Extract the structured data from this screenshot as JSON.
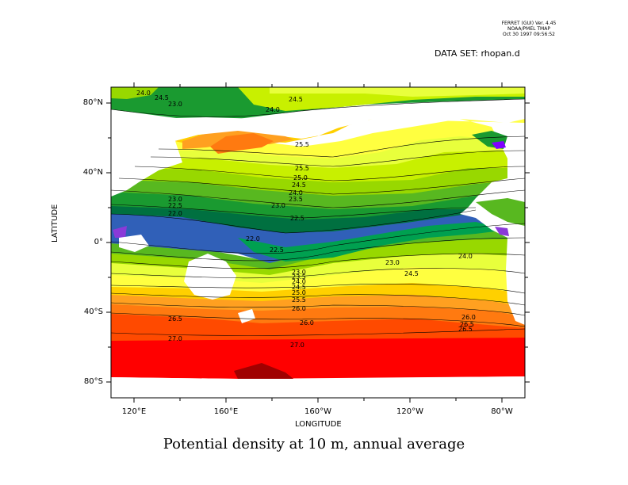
{
  "header": {
    "ferret_line1": "FERRET (GUI) Ver. 4.45",
    "ferret_line2": "NOAA/PMEL TMAP",
    "ferret_line3": "Oct 30 1997 09:56:52",
    "dataset": "DATA SET: rhopan.d"
  },
  "caption": "Potential density at 10 m, annual average",
  "axes": {
    "xlabel": "LONGITUDE",
    "ylabel": "LATITUDE",
    "x_ticks": [
      "120°E",
      "160°E",
      "160°W",
      "120°W",
      "80°W"
    ],
    "y_ticks": [
      "80°N",
      "40°N",
      "0°",
      "40°S",
      "80°S"
    ]
  },
  "colors": {
    "density_bands": [
      "#e6e6e6",
      "#a00000",
      "#ff0000",
      "#ff4a00",
      "#ff7a10",
      "#ffa020",
      "#ffd000",
      "#ffff40",
      "#e8ff3c",
      "#c8f000",
      "#98d800",
      "#58b820",
      "#1a9a30",
      "#00a050",
      "#007040",
      "#3060b8",
      "#8a3ad8",
      "#8000ff"
    ]
  },
  "contour_labels": {
    "north_pacific": [
      "24.0",
      "24.5",
      "23.0",
      "24.0",
      "24.5",
      "25.5",
      "25.5",
      "25.0",
      "24.5",
      "24.0",
      "23.5",
      "23.0",
      "23.0",
      "22.5",
      "22.0",
      "22.5"
    ],
    "equatorial": [
      "22.0",
      "22.5",
      "23.0",
      "24.0",
      "24.5"
    ],
    "south_pacific": [
      "23.0",
      "23.5",
      "24.0",
      "24.5",
      "25.0",
      "25.5",
      "26.0",
      "26.5",
      "26.0",
      "26.5",
      "26.0",
      "26.5",
      "27.0",
      "27.0"
    ]
  }
}
